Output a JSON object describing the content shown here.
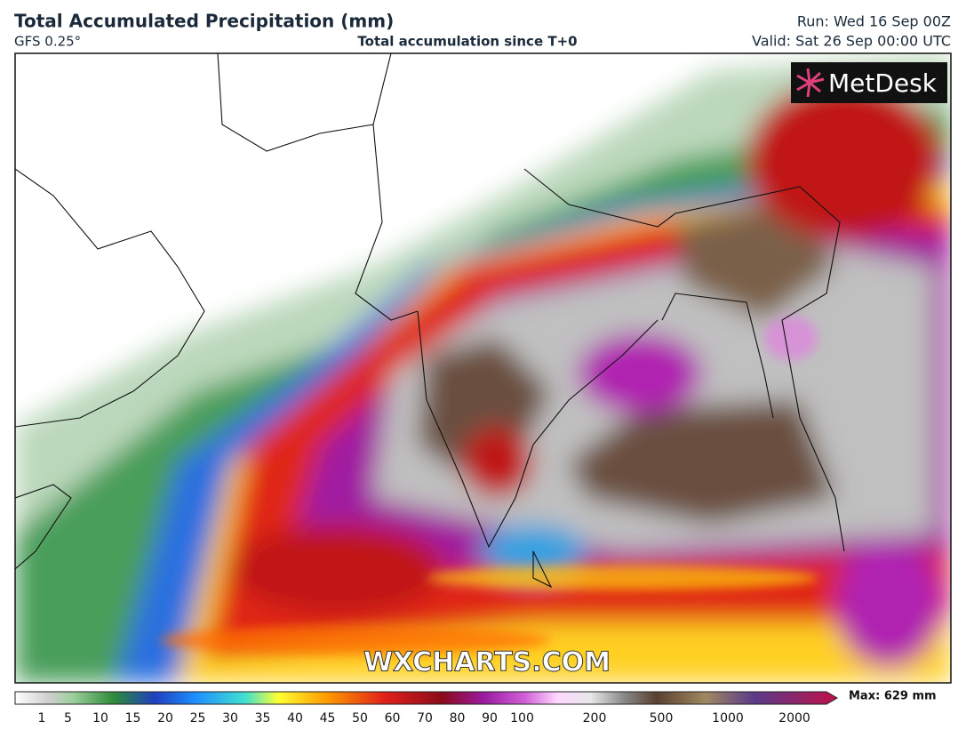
{
  "header": {
    "title": "Total Accumulated Precipitation (mm)",
    "model": "GFS 0.25°",
    "subtitle": "Total accumulation since T+0",
    "run": "Run: Wed 16 Sep 00Z",
    "valid": "Valid: Sat 26 Sep 00:00 UTC"
  },
  "logo": "MetDesk",
  "watermark": "WXCHARTS.COM",
  "legend": {
    "labels": [
      1,
      5,
      10,
      15,
      20,
      25,
      30,
      35,
      40,
      45,
      50,
      60,
      70,
      80,
      90,
      100,
      200,
      500,
      1000,
      2000
    ],
    "max": "Max: 629 mm"
  }
}
